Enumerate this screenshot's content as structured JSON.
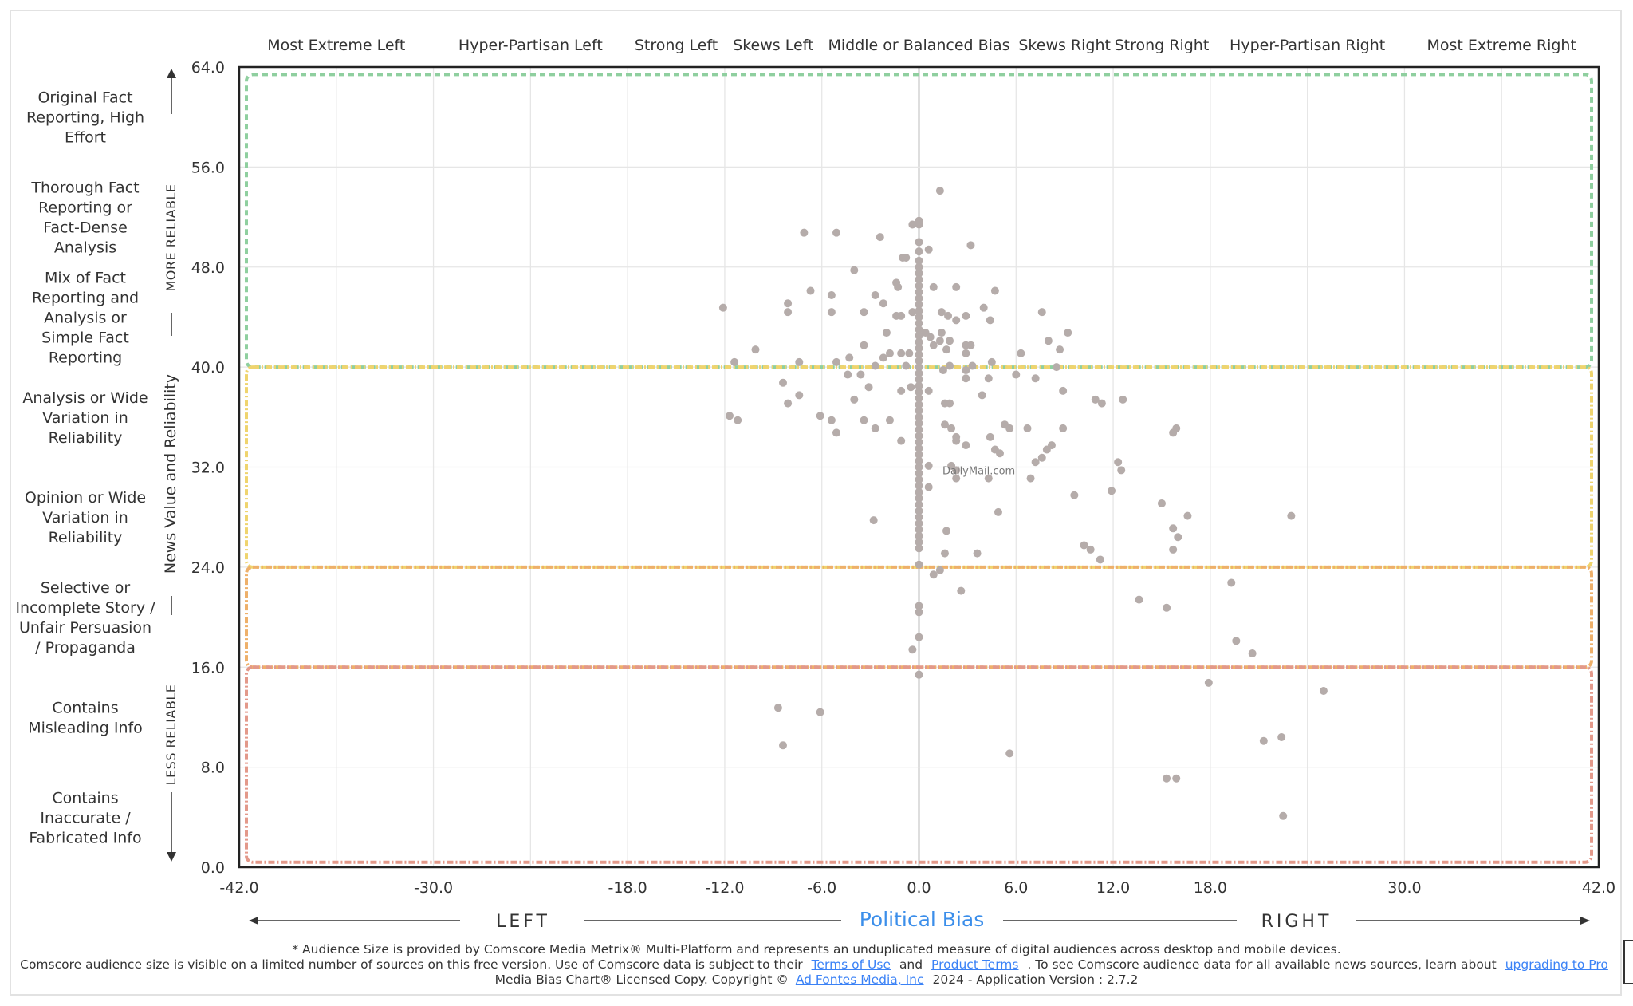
{
  "chart_data": {
    "type": "scatter",
    "title": "",
    "xlabel": "Political Bias",
    "ylabel": "News Value and Reliability",
    "xlim": [
      -42,
      42
    ],
    "ylim": [
      0,
      64
    ],
    "x_ticks": [
      "-42.0",
      "-30.0",
      "-18.0",
      "-12.0",
      "-6.0",
      "0.0",
      "6.0",
      "12.0",
      "18.0",
      "30.0",
      "42.0"
    ],
    "x_tick_values": [
      -42,
      -30,
      -18,
      -12,
      -6,
      0,
      6,
      12,
      18,
      30,
      42
    ],
    "y_ticks": [
      "0.0",
      "8.0",
      "16.0",
      "24.0",
      "32.0",
      "40.0",
      "48.0",
      "56.0",
      "64.0"
    ],
    "y_tick_values": [
      0,
      8,
      16,
      24,
      32,
      40,
      48,
      56,
      64
    ],
    "grid": true,
    "bias_categories": [
      {
        "label": "Most Extreme Left",
        "x": -36
      },
      {
        "label": "Hyper-Partisan Left",
        "x": -24
      },
      {
        "label": "Strong Left",
        "x": -15
      },
      {
        "label": "Skews Left",
        "x": -9
      },
      {
        "label": "Middle or Balanced Bias",
        "x": 0
      },
      {
        "label": "Skews Right",
        "x": 9
      },
      {
        "label": "Strong Right",
        "x": 15
      },
      {
        "label": "Hyper-Partisan Right",
        "x": 24
      },
      {
        "label": "Most Extreme Right",
        "x": 36
      }
    ],
    "reliability_categories": [
      {
        "lines": [
          "Original Fact",
          "Reporting, High",
          "Effort"
        ],
        "y": 60
      },
      {
        "lines": [
          "Thorough Fact",
          "Reporting or",
          "Fact-Dense",
          "Analysis"
        ],
        "y": 52
      },
      {
        "lines": [
          "Mix of Fact",
          "Reporting and",
          "Analysis or",
          "Simple Fact",
          "Reporting"
        ],
        "y": 44
      },
      {
        "lines": [
          "Analysis or Wide",
          "Variation in",
          "Reliability"
        ],
        "y": 36
      },
      {
        "lines": [
          "Opinion or Wide",
          "Variation in",
          "Reliability"
        ],
        "y": 28
      },
      {
        "lines": [
          "Selective or",
          "Incomplete Story /",
          "Unfair Persuasion",
          "/ Propaganda"
        ],
        "y": 20
      },
      {
        "lines": [
          "Contains",
          "Misleading Info"
        ],
        "y": 12
      },
      {
        "lines": [
          "Contains",
          "Inaccurate /",
          "Fabricated Info"
        ],
        "y": 4
      }
    ],
    "reliability_bands": [
      {
        "from": 40,
        "to": 64,
        "color": "#8fcf9f"
      },
      {
        "from": 24,
        "to": 40,
        "color": "#efd46e"
      },
      {
        "from": 16,
        "to": 24,
        "color": "#eeb06a"
      },
      {
        "from": 0,
        "to": 16,
        "color": "#e3998a"
      }
    ],
    "more_reliable_label": "MORE RELIABLE",
    "less_reliable_label": "LESS RELIABLE",
    "left_label": "LEFT",
    "right_label": "RIGHT",
    "point_color": "#b5acaa",
    "axis_title_color": "#3b8eea",
    "highlight_logo": {
      "label": "DailyMail.com",
      "x": 3.7,
      "y": 31.75
    },
    "points": [
      [
        1.3,
        54.1
      ],
      [
        -0.4,
        51.4
      ],
      [
        0,
        51.4
      ],
      [
        -7.1,
        50.75
      ],
      [
        -5.1,
        50.75
      ],
      [
        -2.4,
        50.4
      ],
      [
        3.2,
        49.75
      ],
      [
        0.6,
        49.4
      ],
      [
        -1,
        48.75
      ],
      [
        -0.8,
        48.75
      ],
      [
        -4,
        47.75
      ],
      [
        -6.7,
        46.1
      ],
      [
        -1.4,
        46.75
      ],
      [
        -1.3,
        46.4
      ],
      [
        0.9,
        46.4
      ],
      [
        2.3,
        46.4
      ],
      [
        4.7,
        46.1
      ],
      [
        -5.4,
        45.75
      ],
      [
        -2.7,
        45.75
      ],
      [
        -2.2,
        45.1
      ],
      [
        -8.1,
        45.1
      ],
      [
        -12.1,
        44.75
      ],
      [
        -8.1,
        44.4
      ],
      [
        -5.4,
        44.4
      ],
      [
        -3.4,
        44.4
      ],
      [
        -1.4,
        44.1
      ],
      [
        -1.1,
        44.1
      ],
      [
        -0.4,
        44.4
      ],
      [
        1.4,
        44.4
      ],
      [
        1.8,
        44.1
      ],
      [
        4,
        44.75
      ],
      [
        7.6,
        44.4
      ],
      [
        2.3,
        43.75
      ],
      [
        2.9,
        44.1
      ],
      [
        4.4,
        43.75
      ],
      [
        9.2,
        42.75
      ],
      [
        -2,
        42.75
      ],
      [
        0.4,
        42.75
      ],
      [
        0.7,
        42.4
      ],
      [
        1.4,
        42.75
      ],
      [
        1.3,
        42.1
      ],
      [
        8,
        42.1
      ],
      [
        -3.4,
        41.75
      ],
      [
        -10.1,
        41.4
      ],
      [
        2.9,
        41.75
      ],
      [
        3.2,
        41.75
      ],
      [
        8.7,
        41.4
      ],
      [
        1.9,
        42.1
      ],
      [
        0.9,
        41.75
      ],
      [
        1.7,
        41.4
      ],
      [
        -1.1,
        41.1
      ],
      [
        -0.6,
        41.1
      ],
      [
        -2.2,
        40.75
      ],
      [
        -1.8,
        41.1
      ],
      [
        2.9,
        41.1
      ],
      [
        6.3,
        41.1
      ],
      [
        -4.3,
        40.75
      ],
      [
        -7.4,
        40.4
      ],
      [
        -11.4,
        40.4
      ],
      [
        -5.1,
        40.4
      ],
      [
        -2.7,
        40.1
      ],
      [
        -0.8,
        40.1
      ],
      [
        1.9,
        40.1
      ],
      [
        3.3,
        40.1
      ],
      [
        4.5,
        40.4
      ],
      [
        8.5,
        40
      ],
      [
        -4.4,
        39.4
      ],
      [
        -3.6,
        39.4
      ],
      [
        1.5,
        39.75
      ],
      [
        2.9,
        39.75
      ],
      [
        6,
        39.4
      ],
      [
        -8.4,
        38.75
      ],
      [
        -3.1,
        38.4
      ],
      [
        -0.5,
        38.4
      ],
      [
        2.9,
        39.1
      ],
      [
        4.3,
        39.1
      ],
      [
        7.2,
        39.1
      ],
      [
        -7.4,
        37.75
      ],
      [
        -4,
        37.4
      ],
      [
        -1.1,
        38.1
      ],
      [
        0.6,
        38.1
      ],
      [
        3.9,
        37.75
      ],
      [
        8.9,
        38.1
      ],
      [
        -8.1,
        37.1
      ],
      [
        1.6,
        37.1
      ],
      [
        1.9,
        37.1
      ],
      [
        10.9,
        37.4
      ],
      [
        11.3,
        37.1
      ],
      [
        12.6,
        37.4
      ],
      [
        -11.7,
        36.1
      ],
      [
        -11.2,
        35.75
      ],
      [
        -6.1,
        36.1
      ],
      [
        -5.4,
        35.75
      ],
      [
        -3.4,
        35.75
      ],
      [
        -1.8,
        35.75
      ],
      [
        -2.7,
        35.1
      ],
      [
        -5.1,
        34.75
      ],
      [
        1.6,
        35.4
      ],
      [
        2,
        35.1
      ],
      [
        5.3,
        35.4
      ],
      [
        5.6,
        35.1
      ],
      [
        6.7,
        35.1
      ],
      [
        8.9,
        35.1
      ],
      [
        15.9,
        35.1
      ],
      [
        15.7,
        34.75
      ],
      [
        -1.1,
        34.1
      ],
      [
        2.3,
        34.4
      ],
      [
        2.3,
        34.1
      ],
      [
        4.4,
        34.4
      ],
      [
        2.9,
        33.75
      ],
      [
        8.2,
        33.75
      ],
      [
        7.9,
        33.4
      ],
      [
        4.7,
        33.4
      ],
      [
        5,
        33.1
      ],
      [
        7.6,
        32.75
      ],
      [
        7.2,
        32.4
      ],
      [
        12.3,
        32.4
      ],
      [
        12.5,
        31.75
      ],
      [
        0.6,
        32.1
      ],
      [
        2,
        32.1
      ],
      [
        2.3,
        31.75
      ],
      [
        4.3,
        31.1
      ],
      [
        2.3,
        31.1
      ],
      [
        6.9,
        31.1
      ],
      [
        0.6,
        30.4
      ],
      [
        9.6,
        29.75
      ],
      [
        11.9,
        30.1
      ],
      [
        15,
        29.1
      ],
      [
        4.9,
        28.4
      ],
      [
        16.6,
        28.1
      ],
      [
        23,
        28.1
      ],
      [
        -2.8,
        27.75
      ],
      [
        15.7,
        27.1
      ],
      [
        16,
        26.4
      ],
      [
        1.7,
        26.9
      ],
      [
        10.2,
        25.75
      ],
      [
        10.6,
        25.4
      ],
      [
        15.7,
        25.4
      ],
      [
        1.6,
        25.1
      ],
      [
        3.6,
        25.1
      ],
      [
        11.2,
        24.6
      ],
      [
        1.3,
        23.75
      ],
      [
        0.9,
        23.4
      ],
      [
        19.3,
        22.75
      ],
      [
        2.6,
        22.1
      ],
      [
        13.6,
        21.4
      ],
      [
        15.3,
        20.75
      ],
      [
        19.6,
        18.1
      ],
      [
        20.6,
        17.1
      ],
      [
        -0.4,
        17.4
      ],
      [
        17.9,
        14.75
      ],
      [
        25,
        14.1
      ],
      [
        -8.7,
        12.75
      ],
      [
        -6.1,
        12.4
      ],
      [
        -8.4,
        9.75
      ],
      [
        21.3,
        10.1
      ],
      [
        22.4,
        10.4
      ],
      [
        5.6,
        9.1
      ],
      [
        15.3,
        7.1
      ],
      [
        15.9,
        7.1
      ],
      [
        22.5,
        4.1
      ],
      [
        0,
        51.7
      ],
      [
        0,
        50
      ],
      [
        0,
        49.25
      ],
      [
        0,
        48.5
      ],
      [
        0,
        48
      ],
      [
        0,
        47.5
      ],
      [
        0,
        47
      ],
      [
        0,
        46.5
      ],
      [
        0,
        46
      ],
      [
        0,
        45.5
      ],
      [
        0,
        45
      ],
      [
        0,
        44.5
      ],
      [
        0,
        44
      ],
      [
        0,
        43.5
      ],
      [
        0,
        43
      ],
      [
        0,
        42.5
      ],
      [
        0,
        42
      ],
      [
        0,
        41.5
      ],
      [
        0,
        41
      ],
      [
        0,
        40.5
      ],
      [
        0,
        40
      ],
      [
        0,
        39.5
      ],
      [
        0,
        39
      ],
      [
        0,
        38.5
      ],
      [
        0,
        38
      ],
      [
        0,
        37.5
      ],
      [
        0,
        37
      ],
      [
        0,
        36.5
      ],
      [
        0,
        36
      ],
      [
        0,
        35.5
      ],
      [
        0,
        35
      ],
      [
        0,
        34.5
      ],
      [
        0,
        34
      ],
      [
        0,
        33.5
      ],
      [
        0,
        33
      ],
      [
        0,
        32.5
      ],
      [
        0,
        32
      ],
      [
        0,
        31.5
      ],
      [
        0,
        31
      ],
      [
        0,
        30.5
      ],
      [
        0,
        30
      ],
      [
        0,
        29.5
      ],
      [
        0,
        29
      ],
      [
        0,
        28.5
      ],
      [
        0,
        28
      ],
      [
        0,
        27.5
      ],
      [
        0,
        27
      ],
      [
        0,
        26.5
      ],
      [
        0,
        26
      ],
      [
        0,
        25.5
      ],
      [
        0,
        24.2
      ],
      [
        0,
        20.9
      ],
      [
        0,
        20.4
      ],
      [
        0,
        18.4
      ],
      [
        0,
        15.4
      ]
    ]
  },
  "footer": {
    "line1": "* Audience Size is provided by Comscore Media Metrix® Multi-Platform and represents an unduplicated measure of digital audiences across desktop and mobile devices.",
    "line2_a": "Comscore audience size is visible on a limited number of sources on this free version. Use of Comscore data is subject to their",
    "terms_link": "Terms of Use",
    "and": "and",
    "product_terms_link": "Product Terms",
    "line2_b": ". To see Comscore audience data for all available news sources, learn about",
    "upgrade_link": "upgrading to Pro",
    "line3_a": "Media Bias Chart® Licensed Copy. Copyright ©",
    "company_link": "Ad Fontes Media, Inc",
    "line3_b": "2024 - Application Version : 2.7.2"
  }
}
